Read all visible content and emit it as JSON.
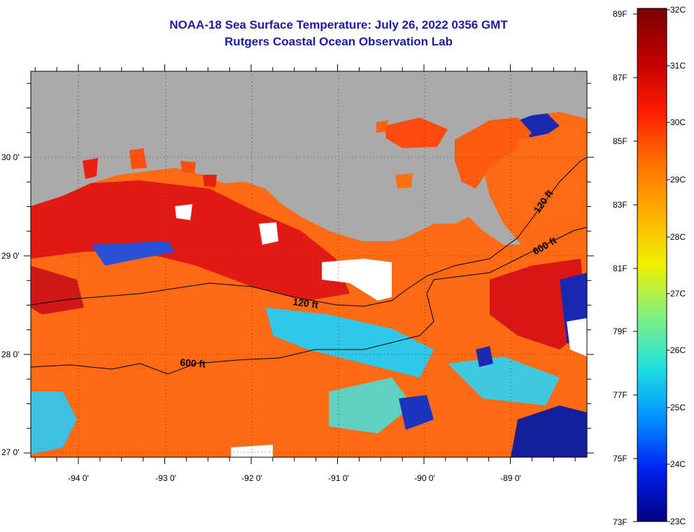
{
  "title": {
    "line1": "NOAA-18 Sea Surface Temperature:  July 26, 2022 0356 GMT",
    "line2": "Rutgers Coastal Ocean Observation Lab"
  },
  "axes": {
    "x_ticks": [
      "-94 0'",
      "-93 0'",
      "-92 0'",
      "-91 0'",
      "-90 0'",
      "-89 0'"
    ],
    "y_ticks": [
      "30 0'",
      "29 0'",
      "28 0'",
      "27 0'"
    ]
  },
  "contours": {
    "labels": [
      "120 ft",
      "600 ft",
      "120 ft",
      "600 ft"
    ]
  },
  "colorbar": {
    "fahrenheit": [
      "89F",
      "87F",
      "85F",
      "83F",
      "81F",
      "79F",
      "77F",
      "75F",
      "73F"
    ],
    "celsius": [
      "32C",
      "31C",
      "30C",
      "29C",
      "28C",
      "27C",
      "26C",
      "25C",
      "24C",
      "23C"
    ],
    "colors": [
      "#7a0000",
      "#c00000",
      "#ff1a00",
      "#ff7000",
      "#ffb000",
      "#f0f000",
      "#80f080",
      "#20e0e0",
      "#0090ff",
      "#0020f0",
      "#000080"
    ]
  },
  "colors": {
    "land": "#aaaaaa",
    "title": "#1a1aa8",
    "warm_water": "#ff5a10",
    "hot_water": "#e01818",
    "cool_water": "#30c8e8",
    "cold_water": "#1030c0",
    "cloud": "#ffffff"
  }
}
